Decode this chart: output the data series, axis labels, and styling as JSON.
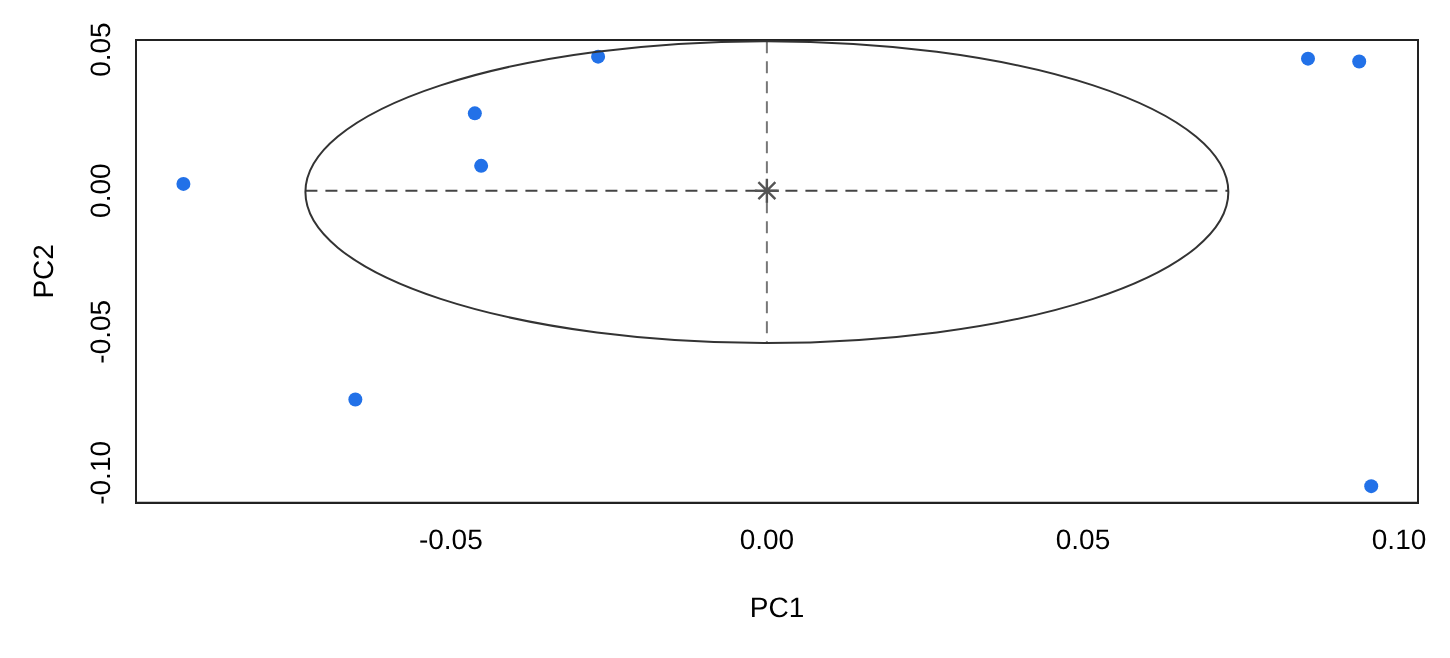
{
  "chart_data": {
    "type": "scatter",
    "xlabel": "PC1",
    "ylabel": "PC2",
    "xlim": [
      -0.0998,
      0.103
    ],
    "ylim": [
      -0.1106,
      0.0534
    ],
    "xticks": [
      {
        "value": -0.05,
        "label": "-0.05"
      },
      {
        "value": 0,
        "label": "0.00"
      },
      {
        "value": 0.05,
        "label": "0.05"
      },
      {
        "value": 0.1,
        "label": "0.10"
      }
    ],
    "yticks": [
      {
        "value": -0.1,
        "label": "-0.10"
      },
      {
        "value": -0.05,
        "label": "-0.05"
      },
      {
        "value": 0,
        "label": "0.00"
      },
      {
        "value": 0.05,
        "label": "0.05"
      }
    ],
    "grid": false,
    "legend": false,
    "series": [
      {
        "type": "scatter",
        "color": "#2271e8",
        "marker": "circle",
        "x": [
          -0.0923,
          -0.0651,
          -0.0462,
          -0.0452,
          -0.0267,
          0.0856,
          0.0937,
          0.0956
        ],
        "values": [
          0.0024,
          -0.074,
          0.0274,
          0.0088,
          0.0475,
          0.0468,
          0.0458,
          -0.1047
        ]
      },
      {
        "type": "line",
        "color": "#444444",
        "marker": "none",
        "line_style": "dashed",
        "x": [
          -0.073,
          0.073
        ],
        "values": [
          0,
          0
        ]
      },
      {
        "type": "line",
        "color": "#777777",
        "marker": "none",
        "line_style": "dashed",
        "x": [
          0,
          0
        ],
        "values": [
          0.053,
          -0.054
        ]
      },
      {
        "type": "scatter",
        "color": "#555555",
        "marker": "cross",
        "x": [
          0
        ],
        "values": [
          0
        ]
      }
    ]
  }
}
